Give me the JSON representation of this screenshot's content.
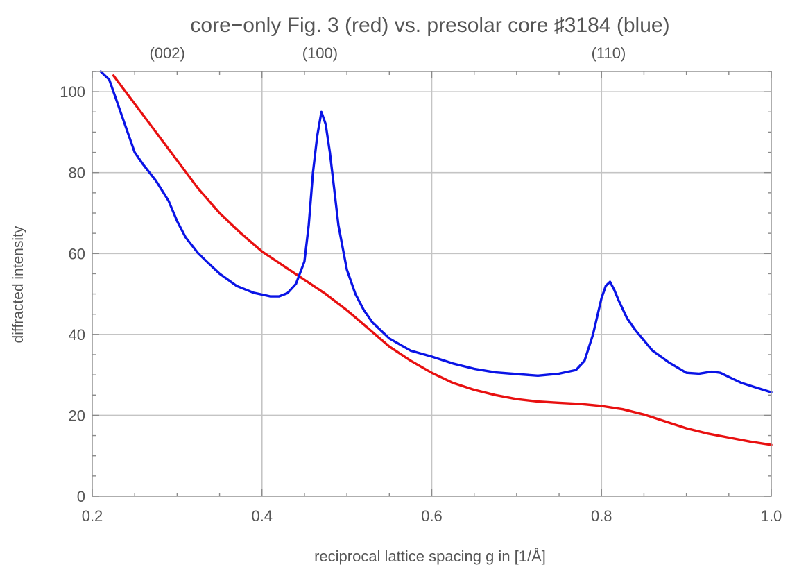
{
  "chart_data": {
    "type": "line",
    "title": "core−only Fig. 3 (red) vs. presolar core ♯3184 (blue)",
    "xlabel": "reciprocal lattice spacing g in [1/Å]",
    "ylabel": "diffracted intensity",
    "xlim": [
      0.2,
      1.0
    ],
    "ylim": [
      0,
      105
    ],
    "x_ticks": [
      "0.2",
      "0.4",
      "0.6",
      "0.8",
      "1.0"
    ],
    "x_tick_values": [
      0.2,
      0.4,
      0.6,
      0.8,
      1.0
    ],
    "y_ticks": [
      "0",
      "20",
      "40",
      "60",
      "80",
      "100"
    ],
    "y_tick_values": [
      0,
      20,
      40,
      60,
      80,
      100
    ],
    "grid": true,
    "top_annotations": [
      {
        "label": "(002)",
        "x": 0.29
      },
      {
        "label": "(100)",
        "x": 0.47
      },
      {
        "label": "(110)",
        "x": 0.81
      }
    ],
    "series": [
      {
        "color": "#e81010",
        "x": [
          0.225,
          0.25,
          0.275,
          0.3,
          0.325,
          0.35,
          0.375,
          0.4,
          0.425,
          0.45,
          0.475,
          0.5,
          0.525,
          0.55,
          0.575,
          0.6,
          0.625,
          0.65,
          0.675,
          0.7,
          0.725,
          0.75,
          0.775,
          0.8,
          0.825,
          0.85,
          0.875,
          0.9,
          0.925,
          0.95,
          0.975,
          1.0
        ],
        "values": [
          104,
          97,
          90,
          83,
          76,
          70,
          65,
          60.5,
          57,
          53.5,
          50,
          46,
          41.5,
          37,
          33.5,
          30.5,
          28,
          26.3,
          25,
          24,
          23.4,
          23.1,
          22.8,
          22.3,
          21.5,
          20.2,
          18.5,
          16.8,
          15.5,
          14.5,
          13.5,
          12.7
        ]
      },
      {
        "color": "#0a14e6",
        "x": [
          0.21,
          0.22,
          0.23,
          0.24,
          0.25,
          0.26,
          0.275,
          0.29,
          0.3,
          0.31,
          0.325,
          0.34,
          0.35,
          0.37,
          0.39,
          0.41,
          0.42,
          0.43,
          0.44,
          0.45,
          0.455,
          0.46,
          0.465,
          0.47,
          0.475,
          0.48,
          0.485,
          0.49,
          0.5,
          0.51,
          0.52,
          0.53,
          0.55,
          0.575,
          0.6,
          0.625,
          0.65,
          0.675,
          0.7,
          0.725,
          0.75,
          0.77,
          0.78,
          0.79,
          0.8,
          0.805,
          0.81,
          0.815,
          0.82,
          0.83,
          0.84,
          0.86,
          0.88,
          0.9,
          0.915,
          0.93,
          0.94,
          0.95,
          0.965,
          0.98,
          1.0
        ],
        "values": [
          105,
          103,
          97,
          91,
          85,
          82,
          78,
          73,
          68,
          64,
          60,
          57,
          55,
          52,
          50.3,
          49.4,
          49.4,
          50.2,
          52.5,
          58,
          67,
          80,
          89,
          95,
          92,
          85,
          76,
          67,
          56,
          50,
          46,
          43,
          39,
          36,
          34.5,
          32.8,
          31.5,
          30.6,
          30.2,
          29.8,
          30.3,
          31.2,
          33.5,
          40,
          49,
          52,
          53,
          51,
          48.5,
          44,
          41,
          36,
          33,
          30.5,
          30.3,
          30.8,
          30.5,
          29.5,
          28,
          27,
          25.7
        ]
      }
    ]
  }
}
